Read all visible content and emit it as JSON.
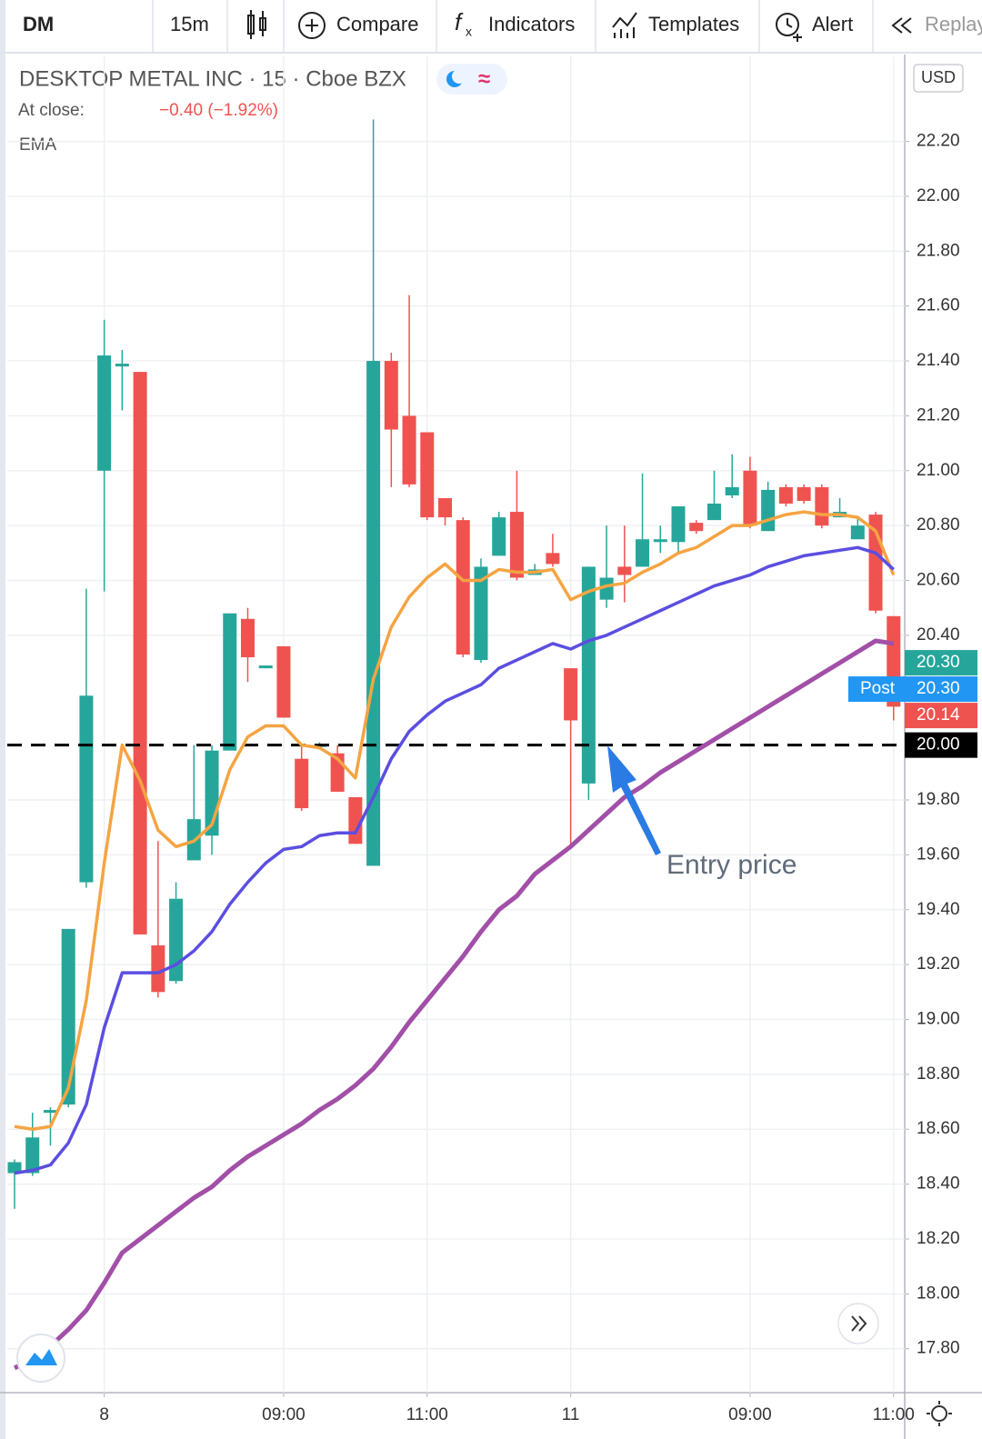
{
  "toolbar": {
    "symbol": "DM",
    "interval": "15m",
    "buttons": [
      "Compare",
      "Indicators",
      "Templates",
      "Alert",
      "Replay"
    ]
  },
  "chart_data": {
    "type": "candlestick",
    "title": "DESKTOP METAL INC · 15 · Cboe BZX",
    "close_label": "At close:",
    "close": [
      18.48,
      18.57,
      18.67,
      19.33,
      20.18,
      21.42,
      21.39,
      19.31,
      19.1,
      19.44,
      19.73,
      19.98,
      20.48,
      20.32,
      20.29,
      20.1,
      19.77,
      20.0,
      19.83,
      19.64,
      21.4,
      21.15,
      20.95,
      20.83,
      20.83,
      20.33,
      20.65,
      20.83,
      20.61,
      20.64,
      20.66,
      20.09,
      20.65,
      20.61,
      20.62,
      20.75,
      20.75,
      20.87,
      20.78,
      20.88,
      20.94,
      20.8,
      20.93,
      20.88,
      20.89,
      20.8,
      20.85,
      20.8,
      20.49,
      20.14
    ],
    "change": "−0.40 (−1.92%)",
    "indicator": "EMA",
    "currency": "USD",
    "annotation": "Entry price",
    "categories": [
      null,
      null,
      null,
      null,
      null,
      "8",
      null,
      null,
      null,
      null,
      null,
      null,
      null,
      null,
      null,
      "09:00",
      null,
      null,
      null,
      null,
      null,
      null,
      null,
      "11:00",
      null,
      null,
      null,
      null,
      null,
      null,
      null,
      "11",
      null,
      null,
      null,
      null,
      null,
      null,
      null,
      null,
      null,
      "09:00",
      null,
      null,
      null,
      null,
      null,
      null,
      null,
      "11:00"
    ],
    "open": [
      18.44,
      18.44,
      18.66,
      18.69,
      19.5,
      21.0,
      21.38,
      21.36,
      19.27,
      19.14,
      19.58,
      19.67,
      19.98,
      20.46,
      20.28,
      20.36,
      19.95,
      20.0,
      19.97,
      19.81,
      19.56,
      21.4,
      21.2,
      21.14,
      20.9,
      20.82,
      20.31,
      20.69,
      20.85,
      20.62,
      20.7,
      20.28,
      19.86,
      20.53,
      20.65,
      20.65,
      20.74,
      20.74,
      20.81,
      20.82,
      20.91,
      21.0,
      20.78,
      20.94,
      20.94,
      20.94,
      20.83,
      20.75,
      20.84,
      20.47
    ],
    "high": [
      18.49,
      18.66,
      18.68,
      19.33,
      20.57,
      21.55,
      21.44,
      21.36,
      19.65,
      19.5,
      20.0,
      20.0,
      20.48,
      20.5,
      20.29,
      20.36,
      20.0,
      20.01,
      20.0,
      19.81,
      22.28,
      21.43,
      21.64,
      21.14,
      20.9,
      20.83,
      20.68,
      20.85,
      21.0,
      20.66,
      20.77,
      20.28,
      20.65,
      20.8,
      20.8,
      20.99,
      20.8,
      20.87,
      20.82,
      21.0,
      21.06,
      21.05,
      20.96,
      20.95,
      20.95,
      20.95,
      20.9,
      20.83,
      20.85,
      20.47
    ],
    "low": [
      18.31,
      18.43,
      18.54,
      18.68,
      19.48,
      20.56,
      21.22,
      19.31,
      19.08,
      19.13,
      19.58,
      19.6,
      19.98,
      20.23,
      20.28,
      20.1,
      19.76,
      19.99,
      19.83,
      19.64,
      19.56,
      20.94,
      20.94,
      20.82,
      20.8,
      20.32,
      20.3,
      20.69,
      20.6,
      20.62,
      20.65,
      19.63,
      19.8,
      20.5,
      20.52,
      20.65,
      20.7,
      20.7,
      20.77,
      20.82,
      20.9,
      20.79,
      20.78,
      20.87,
      20.88,
      20.79,
      20.83,
      20.75,
      20.48,
      20.09
    ],
    "colors": {
      "up": "#26a69a",
      "down": "#ef5350"
    },
    "series": [
      {
        "color": "#f5a442",
        "values": [
          18.61,
          18.6,
          18.61,
          18.75,
          19.07,
          19.57,
          20.0,
          19.87,
          19.69,
          19.63,
          19.65,
          19.71,
          19.91,
          20.03,
          20.07,
          20.07,
          20.0,
          19.99,
          19.95,
          19.88,
          20.24,
          20.43,
          20.54,
          20.61,
          20.66,
          20.6,
          20.6,
          20.64,
          20.63,
          20.63,
          20.64,
          20.53,
          20.56,
          20.58,
          20.59,
          20.63,
          20.66,
          20.7,
          20.72,
          20.76,
          20.8,
          20.8,
          20.82,
          20.84,
          20.85,
          20.84,
          20.84,
          20.83,
          20.78,
          20.62
        ]
      },
      {
        "color": "#5b4ee0",
        "values": [
          18.44,
          18.45,
          18.47,
          18.55,
          18.69,
          18.97,
          19.17,
          19.17,
          19.17,
          19.2,
          19.25,
          19.32,
          19.42,
          19.5,
          19.57,
          19.62,
          19.63,
          19.67,
          19.68,
          19.68,
          19.81,
          19.95,
          20.05,
          20.11,
          20.16,
          20.19,
          20.22,
          20.28,
          20.31,
          20.34,
          20.37,
          20.35,
          20.38,
          20.4,
          20.43,
          20.46,
          20.49,
          20.52,
          20.55,
          20.58,
          20.6,
          20.62,
          20.65,
          20.67,
          20.69,
          20.7,
          20.71,
          20.72,
          20.7,
          20.64
        ]
      },
      {
        "color": "#a24fa8",
        "values": [
          17.73,
          17.76,
          17.81,
          17.87,
          17.94,
          18.04,
          18.15,
          18.2,
          18.25,
          18.3,
          18.35,
          18.39,
          18.45,
          18.5,
          18.54,
          18.58,
          18.62,
          18.67,
          18.71,
          18.76,
          18.82,
          18.9,
          18.99,
          19.07,
          19.15,
          19.23,
          19.32,
          19.4,
          19.45,
          19.53,
          19.58,
          19.63,
          19.69,
          19.75,
          19.81,
          19.85,
          19.9,
          19.94,
          19.98,
          20.02,
          20.06,
          20.1,
          20.14,
          20.18,
          20.22,
          20.26,
          20.3,
          20.34,
          20.38,
          20.37
        ]
      }
    ],
    "ylim": [
      17.64,
      22.51
    ],
    "yticks": [
      {
        "value": 17.8,
        "label": "17.80"
      },
      {
        "value": 18,
        "label": "18.00"
      },
      {
        "value": 18.2,
        "label": "18.20"
      },
      {
        "value": 18.4,
        "label": "18.40"
      },
      {
        "value": 18.6,
        "label": "18.60"
      },
      {
        "value": 18.8,
        "label": "18.80"
      },
      {
        "value": 19,
        "label": "19.00"
      },
      {
        "value": 19.2,
        "label": "19.20"
      },
      {
        "value": 19.4,
        "label": "19.40"
      },
      {
        "value": 19.6,
        "label": "19.60"
      },
      {
        "value": 19.8,
        "label": "19.80"
      },
      {
        "value": 20.4,
        "label": "20.40"
      },
      {
        "value": 20.6,
        "label": "20.60"
      },
      {
        "value": 20.8,
        "label": "20.80"
      },
      {
        "value": 21,
        "label": "21.00"
      },
      {
        "value": 21.2,
        "label": "21.20"
      },
      {
        "value": 21.4,
        "label": "21.40"
      },
      {
        "value": 21.6,
        "label": "21.60"
      },
      {
        "value": 21.8,
        "label": "21.80"
      },
      {
        "value": 22,
        "label": "22.00"
      },
      {
        "value": 22.2,
        "label": "22.20"
      }
    ],
    "grid": true,
    "hline": {
      "value": 20,
      "label": "20.00",
      "color": "#000000"
    },
    "price_tags": [
      {
        "value": 20.3,
        "label": "20.30",
        "color": "#26a69a"
      },
      {
        "value": 20.3,
        "label": "20.30",
        "name": "Post",
        "color": "#2196f3"
      },
      {
        "value": 20.14,
        "label": "20.14",
        "color": "#ef5350"
      }
    ]
  }
}
